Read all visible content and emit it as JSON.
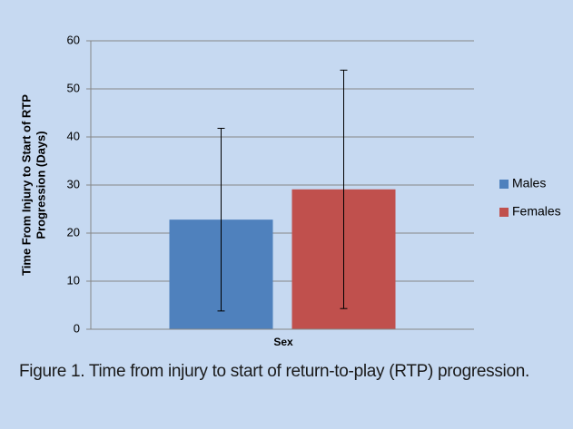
{
  "chart_data": {
    "type": "bar",
    "ylabel": [
      "Time From Injury to Start of RTP",
      "Progression (Days)"
    ],
    "xlabel": "Sex",
    "categories": [
      null
    ],
    "series": [
      {
        "name": "Males",
        "color": "#4f81bd",
        "values": [
          22.8
        ],
        "errors": [
          19
        ]
      },
      {
        "name": "Females",
        "color": "#c0504d",
        "values": [
          29.1
        ],
        "errors": [
          24.8
        ]
      }
    ],
    "ylim": [
      0,
      60
    ],
    "yticks": [
      0,
      10,
      20,
      30,
      40,
      50,
      60
    ],
    "grid": true,
    "legend": "right"
  },
  "caption": "Figure 1.  Time from injury to start of return-to-play (RTP) progression."
}
